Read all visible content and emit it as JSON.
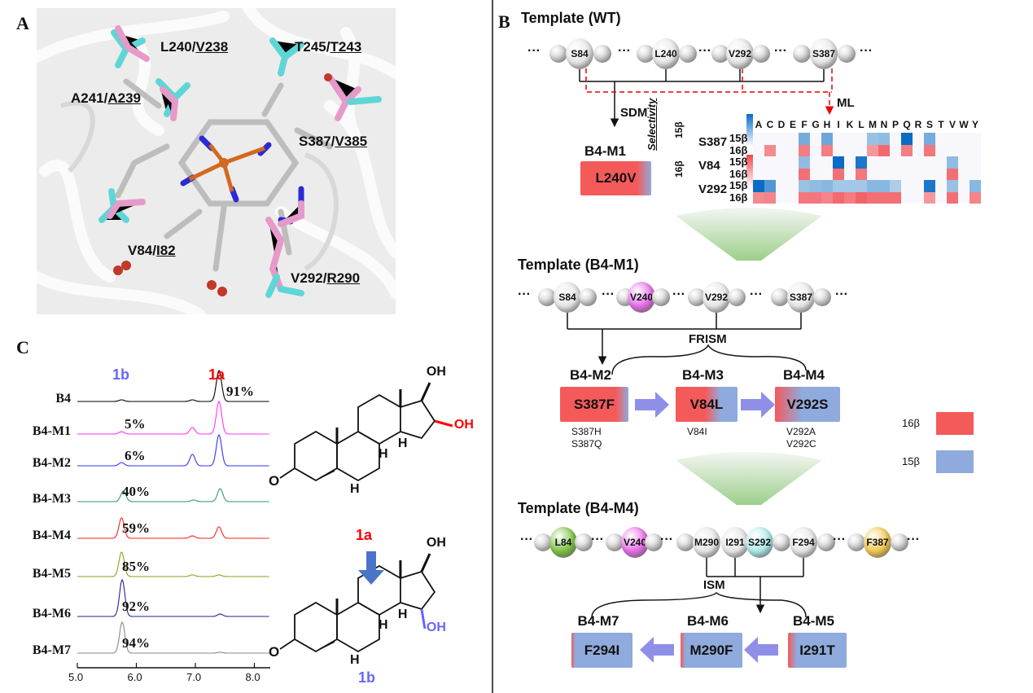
{
  "panel_labels": {
    "a": "A",
    "b": "B",
    "c": "C"
  },
  "panel_a": {
    "residue_labels": [
      {
        "wt": "L240",
        "sep": "/",
        "alt": "V238"
      },
      {
        "wt": "T245",
        "sep": "/",
        "alt": "T243"
      },
      {
        "wt": "A241",
        "sep": "/",
        "alt": "A239"
      },
      {
        "wt": "S387",
        "sep": "/",
        "alt": "V385"
      },
      {
        "wt": "V84",
        "sep": "/",
        "alt": "I82"
      },
      {
        "wt": "V292",
        "sep": "/",
        "alt": "R290"
      }
    ],
    "colors": {
      "variant_sticks": "#e69ac9",
      "template_sticks": "#5fd6d6",
      "heme": "#c8c8c8",
      "iron": "#d2691e",
      "nitrogen": "#2b2bd6",
      "oxygen": "#c0392b"
    }
  },
  "panel_b": {
    "template_wt": {
      "title": "Template (WT)",
      "beads": [
        {
          "label": "S84",
          "color": "#e6e6e6"
        },
        {
          "label": "L240",
          "color": "#e6e6e6"
        },
        {
          "label": "V292",
          "color": "#e6e6e6"
        },
        {
          "label": "S387",
          "color": "#e6e6e6"
        }
      ]
    },
    "sdm_label": "SDM",
    "ml_label": "ML",
    "b4m1": {
      "name": "B4-M1",
      "mutation": "L240V"
    },
    "heatmap": {
      "axis_label": "Selectivity",
      "scale_labels": {
        "top": "15β",
        "bottom": "16β"
      },
      "colors": {
        "15β": "#0a6cc4",
        "16β": "#f0484f"
      },
      "columns": [
        "A",
        "C",
        "D",
        "E",
        "F",
        "G",
        "H",
        "I",
        "K",
        "L",
        "M",
        "N",
        "P",
        "Q",
        "R",
        "S",
        "T",
        "V",
        "W",
        "Y"
      ],
      "rows": [
        {
          "residue": "S387",
          "selectivity": "15β",
          "values": [
            0,
            0,
            0,
            0,
            0.4,
            0,
            0.45,
            0,
            0,
            0,
            0.2,
            0.25,
            0,
            1,
            0,
            0.4,
            0,
            0,
            0,
            0
          ]
        },
        {
          "residue": "",
          "selectivity": "16β",
          "values": [
            0,
            0.5,
            0,
            0,
            0.6,
            0,
            0.6,
            0,
            0,
            0,
            0.4,
            0.75,
            0,
            0.6,
            0,
            0.65,
            0,
            0,
            0,
            0
          ]
        },
        {
          "residue": "V84",
          "selectivity": "15β",
          "values": [
            0,
            0,
            0,
            0,
            0.25,
            0,
            0,
            1,
            0,
            0.9,
            0,
            0,
            0,
            0,
            0,
            0,
            0,
            0.25,
            0,
            0
          ]
        },
        {
          "residue": "",
          "selectivity": "16β",
          "values": [
            0,
            0,
            0,
            0,
            0.7,
            0,
            0,
            0.7,
            0,
            0.65,
            0,
            0,
            0,
            0,
            0,
            0,
            0,
            0.7,
            0,
            0
          ]
        },
        {
          "residue": "V292",
          "selectivity": "15β",
          "values": [
            1,
            0.6,
            0,
            0,
            0.2,
            0.25,
            0.3,
            0.15,
            0.15,
            0.15,
            0.3,
            0.3,
            0.1,
            0,
            0,
            0.9,
            0,
            0.2,
            0,
            0.3
          ]
        },
        {
          "residue": "",
          "selectivity": "16β",
          "values": [
            0.5,
            0.55,
            0,
            0,
            0.65,
            0.65,
            0.55,
            0.75,
            0.6,
            0.8,
            0.7,
            0.7,
            0.7,
            0,
            0,
            0.4,
            0,
            0.7,
            0,
            0.55
          ]
        }
      ]
    },
    "template_m1": {
      "title": "Template (B4-M1)",
      "beads": [
        {
          "label": "S84",
          "color": "#e6e6e6"
        },
        {
          "label": "V240",
          "color": "#e86be8"
        },
        {
          "label": "V292",
          "color": "#e6e6e6"
        },
        {
          "label": "S387",
          "color": "#e6e6e6"
        }
      ]
    },
    "frism_label": "FRISM",
    "frism_variants": [
      {
        "name": "B4-M2",
        "mutation": "S387F",
        "others": [
          "S387H",
          "S387Q"
        ],
        "selectivity_16b": 0.94
      },
      {
        "name": "B4-M3",
        "mutation": "V84L",
        "others": [
          "V84I"
        ],
        "selectivity_16b": 0.6
      },
      {
        "name": "B4-M4",
        "mutation": "V292S",
        "others": [
          "V292A",
          "V292C"
        ],
        "selectivity_16b": 0.41
      }
    ],
    "legend": [
      {
        "label": "16β",
        "color": "#f55a5a"
      },
      {
        "label": "15β",
        "color": "#8faadc"
      }
    ],
    "template_m4": {
      "title": "Template (B4-M4)",
      "beads": [
        {
          "label": "L84",
          "color": "#7cc242"
        },
        {
          "label": "V240",
          "color": "#e86be8"
        },
        {
          "label": "M290",
          "color": "#e6e6e6"
        },
        {
          "label": "I291",
          "color": "#e6e6e6"
        },
        {
          "label": "S292",
          "color": "#aeeaea"
        },
        {
          "label": "F294",
          "color": "#e6e6e6"
        },
        {
          "label": "F387",
          "color": "#f2c94c"
        }
      ]
    },
    "ism_label": "ISM",
    "ism_variants": [
      {
        "name": "B4-M7",
        "mutation": "F294I",
        "selectivity_16b": 0.06
      },
      {
        "name": "B4-M6",
        "mutation": "M290F",
        "selectivity_16b": 0.08
      },
      {
        "name": "B4-M5",
        "mutation": "I291T",
        "selectivity_16b": 0.15
      }
    ]
  },
  "panel_c": {
    "structures": {
      "1a": {
        "label": "1a",
        "color": "#ff0000",
        "oh_top": "OH",
        "oh_sub": "OH",
        "oh_sub_color": "#ff0000",
        "ketone": "O",
        "h_labels": [
          "H",
          "H",
          "H"
        ]
      },
      "1b": {
        "label": "1b",
        "color": "#6666ff",
        "oh_top": "OH",
        "oh_sub": "OH",
        "oh_sub_color": "#6666ff",
        "ketone": "O",
        "h_labels": [
          "H",
          "H",
          "H"
        ]
      }
    }
  },
  "chart_data": {
    "type": "line",
    "title": "",
    "xlabel": "",
    "ylabel": "",
    "xlim": [
      5.0,
      8.25
    ],
    "xticks": [
      "5.0",
      "6.0",
      "7.0",
      "8.0"
    ],
    "grid": false,
    "peak_labels": [
      {
        "label": "1b",
        "x": 5.75,
        "color": "#6666ff"
      },
      {
        "label": "1a",
        "x": 7.4,
        "color": "#ff0000"
      }
    ],
    "series": [
      {
        "name": "B4",
        "color": "#000000",
        "percent": "91%",
        "peaks": [
          [
            5.75,
            2
          ],
          [
            6.95,
            2
          ],
          [
            7.4,
            38
          ]
        ]
      },
      {
        "name": "B4-M1",
        "color": "#ff33ff",
        "percent": "5%",
        "peaks": [
          [
            5.75,
            3
          ],
          [
            6.95,
            8
          ],
          [
            7.4,
            40
          ]
        ]
      },
      {
        "name": "B4-M2",
        "color": "#3333ff",
        "percent": "6%",
        "peaks": [
          [
            5.75,
            4
          ],
          [
            6.95,
            14
          ],
          [
            7.4,
            38
          ]
        ]
      },
      {
        "name": "B4-M3",
        "color": "#2e9b6a",
        "percent": "40%",
        "peaks": [
          [
            5.78,
            13
          ],
          [
            6.97,
            2
          ],
          [
            7.42,
            16
          ]
        ]
      },
      {
        "name": "B4-M4",
        "color": "#ff2020",
        "percent": "59%",
        "peaks": [
          [
            5.75,
            25
          ],
          [
            6.95,
            3
          ],
          [
            7.4,
            14
          ]
        ]
      },
      {
        "name": "B4-M5",
        "color": "#9a9a1e",
        "percent": "85%",
        "peaks": [
          [
            5.75,
            30
          ],
          [
            6.95,
            2
          ],
          [
            7.4,
            2
          ]
        ]
      },
      {
        "name": "B4-M6",
        "color": "#22229a",
        "percent": "92%",
        "peaks": [
          [
            5.76,
            45
          ],
          [
            7.42,
            3
          ]
        ]
      },
      {
        "name": "B4-M7",
        "color": "#888888",
        "percent": "94%",
        "peaks": [
          [
            5.76,
            38
          ],
          [
            7.42,
            1
          ]
        ]
      }
    ]
  }
}
